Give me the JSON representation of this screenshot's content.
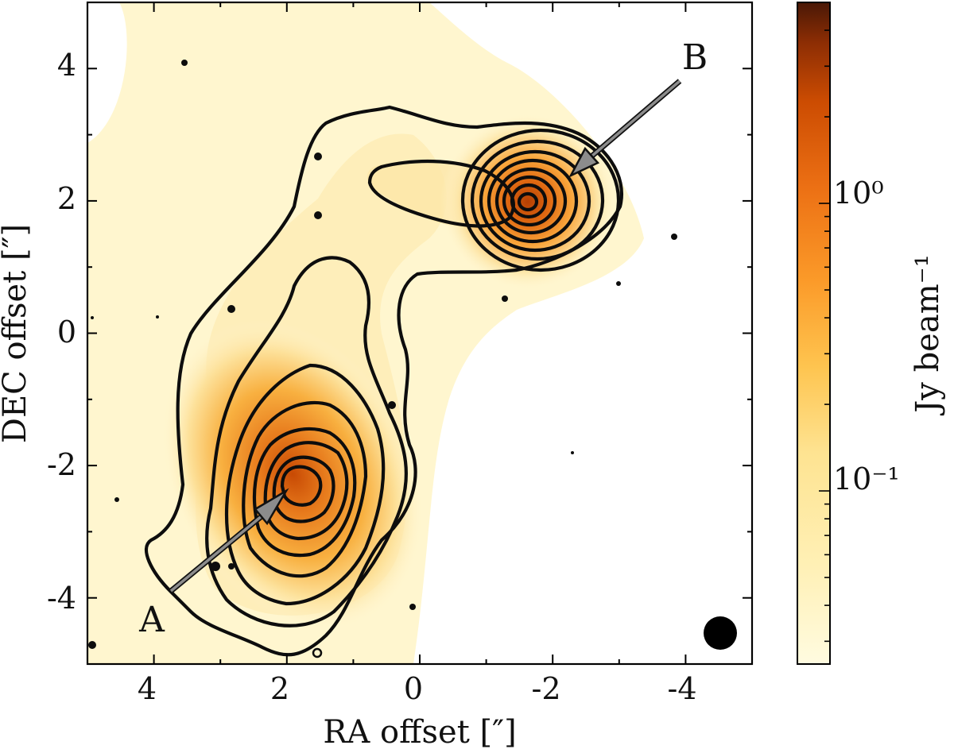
{
  "chart_data": {
    "type": "heatmap",
    "xlabel": "RA offset [″]",
    "ylabel": "DEC offset [″]",
    "xlim": [
      5,
      -5
    ],
    "ylim": [
      -5,
      5
    ],
    "xticks": [
      4,
      2,
      0,
      -2,
      -4
    ],
    "xtick_labels": [
      "4",
      "2",
      "0",
      "-2",
      "-4"
    ],
    "yticks": [
      4,
      2,
      0,
      -2,
      -4
    ],
    "ytick_labels": [
      "4",
      "2",
      "0",
      "-2",
      "-4"
    ],
    "grid": false,
    "colormap": "YlOrBr (log scale)",
    "colorbar": {
      "label": "Jy beam⁻¹",
      "scale": "log",
      "range": [
        0.025,
        5.0
      ],
      "tick_values": [
        0.1,
        1
      ],
      "tick_labels": [
        "10⁻¹",
        "10⁰"
      ],
      "colors": [
        "#fffbe0",
        "#fee391",
        "#fec44f",
        "#fb9a29",
        "#ec7014",
        "#cc4c02",
        "#8c2d04",
        "#4a1806"
      ]
    },
    "sources": [
      {
        "name": "A",
        "ra": 1.85,
        "dec": -2.15,
        "peak_jy_beam": 1.3
      },
      {
        "name": "B",
        "ra": -1.65,
        "dec": 1.95,
        "peak_jy_beam": 2.5
      }
    ],
    "annotations": [
      {
        "text": "A",
        "label_ra": 3.85,
        "label_dec": -4.3,
        "arrow_from": [
          3.65,
          -3.95
        ],
        "arrow_to": [
          2.0,
          -2.35
        ]
      },
      {
        "text": "B",
        "label_ra": -4.0,
        "label_dec": 4.15,
        "arrow_from": [
          -4.0,
          3.8
        ],
        "arrow_to": [
          -2.3,
          2.3
        ]
      }
    ],
    "beam": {
      "ra": -4.5,
      "dec": -4.55,
      "diameter_arcsec": 0.45
    }
  }
}
